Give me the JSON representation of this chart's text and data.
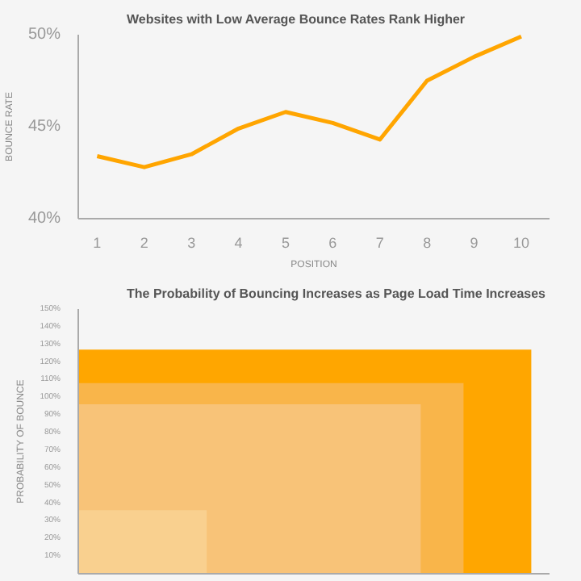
{
  "chart_data": [
    {
      "type": "line",
      "title": "Websites with Low Average Bounce Rates Rank Higher",
      "xlabel": "POSITION",
      "ylabel": "BOUNCE RATE",
      "x": [
        1,
        2,
        3,
        4,
        5,
        6,
        7,
        8,
        9,
        10
      ],
      "series": [
        {
          "color": "#ffa500",
          "values": [
            43.4,
            42.8,
            43.5,
            44.9,
            45.8,
            45.2,
            44.3,
            47.5,
            48.8,
            49.9
          ]
        }
      ],
      "xlim": [
        0.6,
        10.6
      ],
      "xticks": [
        1,
        2,
        3,
        4,
        5,
        6,
        7,
        8,
        9,
        10
      ],
      "ylim": [
        40,
        50
      ],
      "yticks": [
        {
          "value": 40,
          "label": "40%"
        },
        {
          "value": 45,
          "label": "45%"
        },
        {
          "value": 50,
          "label": "50%"
        }
      ],
      "grid": false,
      "marker": "none",
      "line_style": "solid"
    },
    {
      "type": "bar",
      "title": "The Probability of Bouncing Increases as Page Load Time Increases",
      "ylabel": "PROBABILITY OF BOUNCE",
      "categories": [
        null
      ],
      "series": [
        {
          "color": "#ffa600",
          "values": [
            127
          ]
        },
        {
          "color": "#f9b54a",
          "values": [
            108
          ]
        },
        {
          "color": "#f8c378",
          "values": [
            96
          ]
        },
        {
          "color": "#f9d08f",
          "values": [
            36
          ]
        }
      ],
      "ylim": [
        0,
        150
      ],
      "yticks": [
        {
          "value": 10,
          "label": "10%"
        },
        {
          "value": 20,
          "label": "20%"
        },
        {
          "value": 30,
          "label": "30%"
        },
        {
          "value": 40,
          "label": "40%"
        },
        {
          "value": 50,
          "label": "50%"
        },
        {
          "value": 60,
          "label": "60%"
        },
        {
          "value": 70,
          "label": "70%"
        },
        {
          "value": 80,
          "label": "80%"
        },
        {
          "value": 90,
          "label": "90%"
        },
        {
          "value": 100,
          "label": "100%"
        },
        {
          "value": 110,
          "label": "110%"
        },
        {
          "value": 120,
          "label": "120%"
        },
        {
          "value": 130,
          "label": "130%"
        },
        {
          "value": 140,
          "label": "140%"
        },
        {
          "value": 150,
          "label": "150%"
        }
      ],
      "grid": false
    }
  ]
}
